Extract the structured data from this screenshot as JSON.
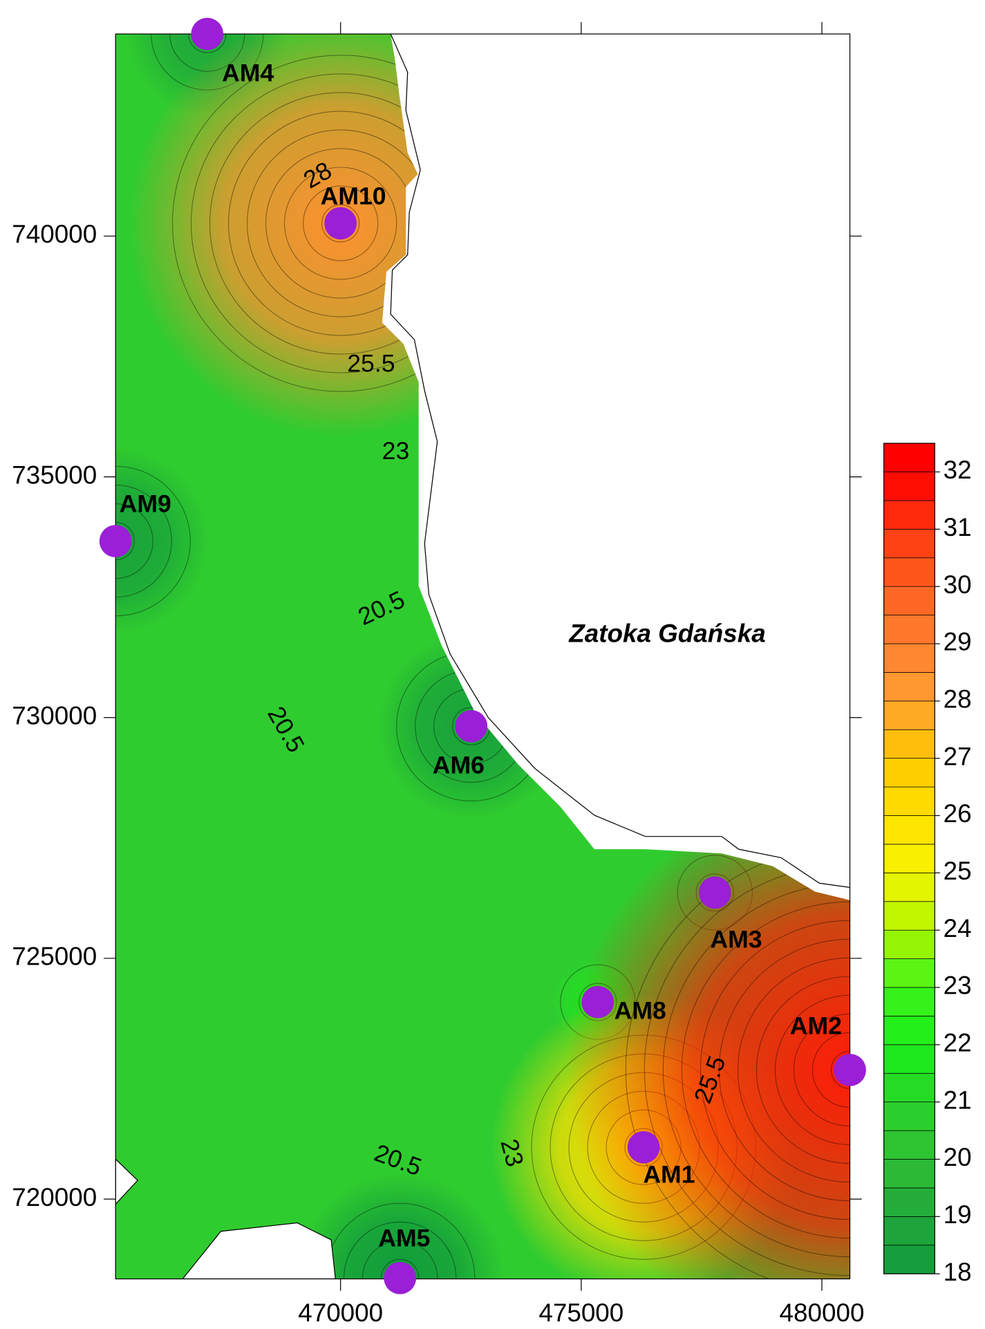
{
  "map": {
    "title": "Zatoka Gdańska",
    "xlim": [
      465326,
      480582
    ],
    "ylim": [
      718342,
      744198
    ],
    "xticks": [
      470000,
      475000,
      480000
    ],
    "yticks": [
      720000,
      725000,
      730000,
      735000,
      740000
    ],
    "stations": [
      {
        "label": "AM4",
        "x": 467230,
        "y": 744198,
        "value": 19
      },
      {
        "label": "AM10",
        "x": 470000,
        "y": 740265,
        "value": 28.5
      },
      {
        "label": "AM9",
        "x": 465326,
        "y": 733665,
        "value": 18.5
      },
      {
        "label": "AM6",
        "x": 472716,
        "y": 729820,
        "value": 18.5
      },
      {
        "label": "AM3",
        "x": 477778,
        "y": 726365,
        "value": 20
      },
      {
        "label": "AM8",
        "x": 475344,
        "y": 724092,
        "value": 21.5
      },
      {
        "label": "AM1",
        "x": 476296,
        "y": 721076,
        "value": 26
      },
      {
        "label": "AM2",
        "x": 480582,
        "y": 722681,
        "value": 31.5
      },
      {
        "label": "AM5",
        "x": 471235,
        "y": 718360,
        "value": 18
      }
    ],
    "contour_labels": [
      28,
      25.5,
      23,
      20.5,
      20.5,
      20.5,
      23,
      25.5
    ],
    "colorbar": {
      "lim": [
        18,
        32.5
      ],
      "ticks": [
        18,
        19,
        20,
        21,
        22,
        23,
        24,
        25,
        26,
        27,
        28,
        29,
        30,
        31,
        32
      ],
      "step": 0.5,
      "colors": [
        "#129a3c",
        "#20a83a",
        "#2fbf35",
        "#2ad42a",
        "#1aee1a",
        "#3ef51a",
        "#b0f500",
        "#f5f500",
        "#ffe000",
        "#ffc800",
        "#ffa030",
        "#ff8030",
        "#ff6020",
        "#ff3810",
        "#ff0000"
      ]
    }
  }
}
